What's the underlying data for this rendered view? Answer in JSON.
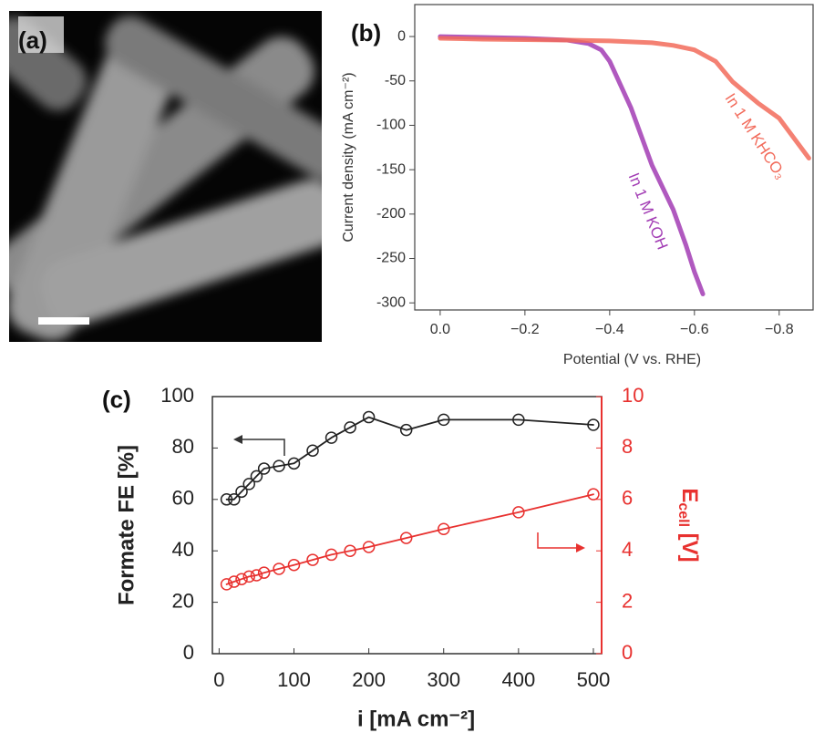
{
  "image_panel": {
    "label": "(a)"
  },
  "chart_data": [
    {
      "type": "line",
      "panel_label": "(b)",
      "x_label": "Potential (V vs. RHE)",
      "y_label": "Current density (mA cm⁻²)",
      "xlim": [
        0.06,
        -0.88
      ],
      "xticks": [
        {
          "value": 0,
          "label": "0.0"
        },
        {
          "value": -0.2,
          "label": "−0.2"
        },
        {
          "value": -0.4,
          "label": "−0.4"
        },
        {
          "value": -0.6,
          "label": "−0.6"
        },
        {
          "value": -0.8,
          "label": "−0.8"
        }
      ],
      "ylim": [
        -308,
        36
      ],
      "yticks": [
        0,
        -50,
        -100,
        -150,
        -200,
        -250,
        -300
      ],
      "series": [
        {
          "name": "In 1 M KOH",
          "color": "#a23cb4",
          "x": [
            0,
            -0.1,
            -0.2,
            -0.3,
            -0.35,
            -0.38,
            -0.4,
            -0.45,
            -0.5,
            -0.55,
            -0.58,
            -0.6,
            -0.62
          ],
          "values": [
            0,
            -1,
            -2,
            -4,
            -8,
            -15,
            -28,
            -80,
            -145,
            -195,
            -235,
            -265,
            -290
          ]
        },
        {
          "name": "In 1 M KHCO₃",
          "color": "#f26b5b",
          "x": [
            0,
            -0.1,
            -0.2,
            -0.3,
            -0.4,
            -0.5,
            -0.55,
            -0.6,
            -0.65,
            -0.69,
            -0.75,
            -0.8,
            -0.87
          ],
          "values": [
            -2,
            -3,
            -3.5,
            -4,
            -5,
            -7,
            -10,
            -15,
            -28,
            -51,
            -75,
            -92,
            -137
          ]
        }
      ]
    },
    {
      "type": "line",
      "panel_label": "(c)",
      "x_label": "i [mA cm⁻²]",
      "y_label": "Formate FE [%]",
      "y2_label": [
        "E",
        "cell",
        " [V]"
      ],
      "xlim": [
        -9,
        511
      ],
      "xticks": [
        0,
        100,
        200,
        300,
        400,
        500
      ],
      "ylim": [
        0,
        100
      ],
      "yticks": [
        0,
        20,
        40,
        60,
        80,
        100
      ],
      "y2lim": [
        0,
        10
      ],
      "y2ticks": [
        0,
        2,
        4,
        6,
        8,
        10
      ],
      "y2color": "#e8312f",
      "series": [
        {
          "color": "#222222",
          "x": [
            10,
            20,
            30,
            40,
            50,
            60,
            80,
            100,
            125,
            150,
            175,
            200,
            250,
            300,
            400,
            500
          ],
          "values": [
            60,
            60,
            63,
            66,
            69,
            72,
            73,
            74,
            79,
            84,
            88,
            92,
            87,
            91,
            91,
            89
          ]
        },
        {
          "color": "#e8312f",
          "axis": "y2",
          "x": [
            10,
            20,
            30,
            40,
            50,
            60,
            80,
            100,
            125,
            150,
            175,
            200,
            250,
            300,
            400,
            500
          ],
          "values": [
            2.7,
            2.8,
            2.9,
            3.0,
            3.05,
            3.15,
            3.3,
            3.45,
            3.65,
            3.85,
            4.0,
            4.15,
            4.5,
            4.85,
            5.5,
            6.2
          ]
        }
      ]
    }
  ]
}
